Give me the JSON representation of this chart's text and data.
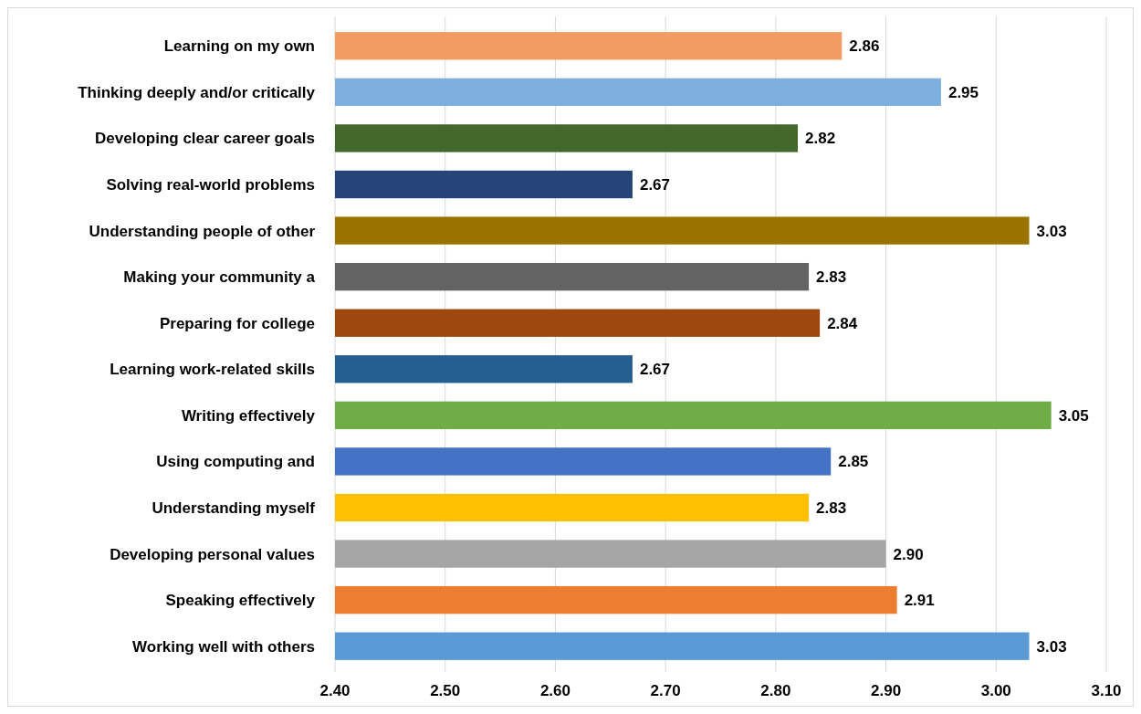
{
  "chart_data": {
    "type": "bar",
    "orientation": "horizontal",
    "categories": [
      "Learning on my own",
      "Thinking deeply and/or critically",
      "Developing clear career goals",
      "Solving real-world problems",
      "Understanding people of other",
      "Making your community a",
      "Preparing for college",
      "Learning work-related skills",
      "Writing effectively",
      "Using computing and",
      "Understanding myself",
      "Developing personal values",
      "Speaking effectively",
      "Working well with others"
    ],
    "values": [
      2.86,
      2.95,
      2.82,
      2.67,
      3.03,
      2.83,
      2.84,
      2.67,
      3.05,
      2.85,
      2.83,
      2.9,
      2.91,
      3.03
    ],
    "value_labels": [
      "2.86",
      "2.95",
      "2.82",
      "2.67",
      "3.03",
      "2.83",
      "2.84",
      "2.67",
      "3.05",
      "2.85",
      "2.83",
      "2.90",
      "2.91",
      "3.03"
    ],
    "colors": [
      "#f39c62",
      "#7eb0df",
      "#43682b",
      "#264478",
      "#997300",
      "#636363",
      "#9e480e",
      "#255e91",
      "#70ad47",
      "#4472c4",
      "#ffc000",
      "#a5a5a5",
      "#ed7d31",
      "#5b9bd5"
    ],
    "xlim": [
      2.4,
      3.1
    ],
    "xticks": [
      {
        "value": 2.4,
        "label": "2.40"
      },
      {
        "value": 2.5,
        "label": "2.50"
      },
      {
        "value": 2.6,
        "label": "2.60"
      },
      {
        "value": 2.7,
        "label": "2.70"
      },
      {
        "value": 2.8,
        "label": "2.80"
      },
      {
        "value": 2.9,
        "label": "2.90"
      },
      {
        "value": 3.0,
        "label": "3.00"
      },
      {
        "value": 3.1,
        "label": "3.10"
      }
    ],
    "grid": "x"
  }
}
